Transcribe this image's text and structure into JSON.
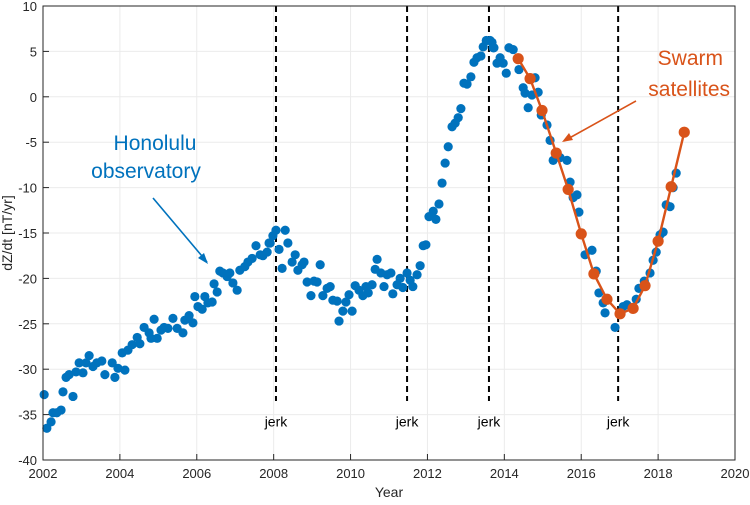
{
  "chart_data": {
    "type": "scatter",
    "title": "",
    "xlabel": "Year",
    "ylabel": "dZ/dt [nT/yr]",
    "xlim": [
      2002,
      2020
    ],
    "ylim": [
      -40,
      10
    ],
    "xticks": [
      2002,
      2004,
      2006,
      2008,
      2010,
      2012,
      2014,
      2016,
      2018,
      2020
    ],
    "yticks": [
      -40,
      -35,
      -30,
      -25,
      -20,
      -15,
      -10,
      -5,
      0,
      5,
      10
    ],
    "grid": true,
    "series": [
      {
        "name": "Honolulu observatory",
        "style": "markers",
        "color": "#0072BD",
        "points": [
          [
            2002.03,
            -32.8
          ],
          [
            2002.1,
            -36.5
          ],
          [
            2002.21,
            -35.8
          ],
          [
            2002.26,
            -34.8
          ],
          [
            2002.36,
            -34.8
          ],
          [
            2002.47,
            -34.5
          ],
          [
            2002.52,
            -32.5
          ],
          [
            2002.6,
            -30.9
          ],
          [
            2002.68,
            -30.6
          ],
          [
            2002.78,
            -33.0
          ],
          [
            2002.86,
            -30.3
          ],
          [
            2002.94,
            -29.3
          ],
          [
            2003.04,
            -30.4
          ],
          [
            2003.12,
            -29.3
          ],
          [
            2003.2,
            -28.5
          ],
          [
            2003.3,
            -29.7
          ],
          [
            2003.4,
            -29.3
          ],
          [
            2003.53,
            -29.1
          ],
          [
            2003.61,
            -30.6
          ],
          [
            2003.8,
            -29.3
          ],
          [
            2003.87,
            -30.9
          ],
          [
            2003.95,
            -29.9
          ],
          [
            2004.06,
            -28.2
          ],
          [
            2004.13,
            -30.1
          ],
          [
            2004.21,
            -27.9
          ],
          [
            2004.32,
            -27.3
          ],
          [
            2004.45,
            -26.5
          ],
          [
            2004.52,
            -27.2
          ],
          [
            2004.63,
            -25.4
          ],
          [
            2004.76,
            -26.0
          ],
          [
            2004.81,
            -26.6
          ],
          [
            2004.89,
            -24.5
          ],
          [
            2004.97,
            -26.6
          ],
          [
            2005.07,
            -25.7
          ],
          [
            2005.15,
            -25.4
          ],
          [
            2005.25,
            -25.5
          ],
          [
            2005.38,
            -24.4
          ],
          [
            2005.49,
            -25.5
          ],
          [
            2005.64,
            -26.0
          ],
          [
            2005.69,
            -24.6
          ],
          [
            2005.8,
            -24.1
          ],
          [
            2005.9,
            -24.9
          ],
          [
            2005.95,
            -22.0
          ],
          [
            2006.03,
            -23.1
          ],
          [
            2006.14,
            -23.4
          ],
          [
            2006.21,
            -22.0
          ],
          [
            2006.29,
            -22.7
          ],
          [
            2006.4,
            -22.6
          ],
          [
            2006.45,
            -20.6
          ],
          [
            2006.53,
            -21.5
          ],
          [
            2006.6,
            -19.2
          ],
          [
            2006.68,
            -19.4
          ],
          [
            2006.79,
            -19.8
          ],
          [
            2006.86,
            -19.4
          ],
          [
            2006.94,
            -20.5
          ],
          [
            2007.05,
            -21.3
          ],
          [
            2007.12,
            -19.1
          ],
          [
            2007.25,
            -18.7
          ],
          [
            2007.33,
            -18.2
          ],
          [
            2007.44,
            -17.8
          ],
          [
            2007.54,
            -16.4
          ],
          [
            2007.65,
            -17.4
          ],
          [
            2007.72,
            -17.5
          ],
          [
            2007.83,
            -17.1
          ],
          [
            2007.88,
            -16.1
          ],
          [
            2007.91,
            -16.1
          ],
          [
            2007.98,
            -15.3
          ],
          [
            2008.06,
            -14.7
          ],
          [
            2008.14,
            -16.8
          ],
          [
            2008.22,
            -18.9
          ],
          [
            2008.3,
            -14.7
          ],
          [
            2008.37,
            -16.1
          ],
          [
            2008.48,
            -18.2
          ],
          [
            2008.56,
            -17.4
          ],
          [
            2008.63,
            -19.1
          ],
          [
            2008.74,
            -18.5
          ],
          [
            2008.79,
            -18.2
          ],
          [
            2008.87,
            -20.4
          ],
          [
            2008.97,
            -21.9
          ],
          [
            2009.05,
            -20.3
          ],
          [
            2009.13,
            -20.4
          ],
          [
            2009.21,
            -18.5
          ],
          [
            2009.28,
            -21.9
          ],
          [
            2009.39,
            -21.1
          ],
          [
            2009.47,
            -20.9
          ],
          [
            2009.54,
            -22.4
          ],
          [
            2009.65,
            -22.5
          ],
          [
            2009.7,
            -24.7
          ],
          [
            2009.8,
            -23.6
          ],
          [
            2009.88,
            -22.6
          ],
          [
            2009.96,
            -21.8
          ],
          [
            2010.04,
            -23.6
          ],
          [
            2010.12,
            -20.8
          ],
          [
            2010.22,
            -21.3
          ],
          [
            2010.32,
            -21.9
          ],
          [
            2010.4,
            -20.9
          ],
          [
            2010.46,
            -21.6
          ],
          [
            2010.56,
            -20.7
          ],
          [
            2010.64,
            -19.0
          ],
          [
            2010.69,
            -17.9
          ],
          [
            2010.79,
            -19.4
          ],
          [
            2010.87,
            -20.9
          ],
          [
            2010.95,
            -19.6
          ],
          [
            2011.05,
            -19.4
          ],
          [
            2011.1,
            -21.7
          ],
          [
            2011.21,
            -20.7
          ],
          [
            2011.29,
            -20.0
          ],
          [
            2011.36,
            -21.0
          ],
          [
            2011.47,
            -19.4
          ],
          [
            2011.55,
            -20.2
          ],
          [
            2011.62,
            -20.9
          ],
          [
            2011.73,
            -19.6
          ],
          [
            2011.81,
            -18.6
          ],
          [
            2011.89,
            -16.4
          ],
          [
            2011.96,
            -16.3
          ],
          [
            2012.04,
            -13.2
          ],
          [
            2012.15,
            -12.6
          ],
          [
            2012.22,
            -13.5
          ],
          [
            2012.3,
            -11.8
          ],
          [
            2012.38,
            -9.5
          ],
          [
            2012.46,
            -7.3
          ],
          [
            2012.54,
            -5.5
          ],
          [
            2012.64,
            -3.3
          ],
          [
            2012.72,
            -2.9
          ],
          [
            2012.8,
            -2.3
          ],
          [
            2012.87,
            -1.3
          ],
          [
            2012.95,
            1.5
          ],
          [
            2013.03,
            1.4
          ],
          [
            2013.13,
            2.2
          ],
          [
            2013.21,
            3.8
          ],
          [
            2013.29,
            4.3
          ],
          [
            2013.39,
            4.5
          ],
          [
            2013.45,
            5.5
          ],
          [
            2013.53,
            6.2
          ],
          [
            2013.63,
            6.2
          ],
          [
            2013.68,
            6.0
          ],
          [
            2013.71,
            5.4
          ],
          [
            2013.73,
            5.4
          ],
          [
            2013.81,
            3.7
          ],
          [
            2013.89,
            4.3
          ],
          [
            2013.97,
            3.7
          ],
          [
            2014.05,
            2.6
          ],
          [
            2014.12,
            5.4
          ],
          [
            2014.23,
            5.2
          ],
          [
            2014.38,
            3.0
          ],
          [
            2014.49,
            1.0
          ],
          [
            2014.54,
            0.4
          ],
          [
            2014.62,
            -1.2
          ],
          [
            2014.72,
            0.2
          ],
          [
            2014.8,
            2.1
          ],
          [
            2014.88,
            0.5
          ],
          [
            2014.96,
            -2.0
          ],
          [
            2015.11,
            -3.1
          ],
          [
            2015.19,
            -4.8
          ],
          [
            2015.27,
            -7.0
          ],
          [
            2015.45,
            -6.7
          ],
          [
            2015.63,
            -7.0
          ],
          [
            2015.71,
            -9.4
          ],
          [
            2015.79,
            -11.1
          ],
          [
            2015.89,
            -10.8
          ],
          [
            2015.94,
            -12.7
          ],
          [
            2016.1,
            -17.4
          ],
          [
            2016.28,
            -16.9
          ],
          [
            2016.39,
            -19.2
          ],
          [
            2016.46,
            -21.6
          ],
          [
            2016.57,
            -22.7
          ],
          [
            2016.62,
            -23.8
          ],
          [
            2016.88,
            -25.4
          ],
          [
            2017.09,
            -23.1
          ],
          [
            2017.19,
            -22.9
          ],
          [
            2017.43,
            -22.3
          ],
          [
            2017.5,
            -21.1
          ],
          [
            2017.64,
            -20.3
          ],
          [
            2017.79,
            -19.4
          ],
          [
            2017.87,
            -18.0
          ],
          [
            2017.95,
            -17.1
          ],
          [
            2018.05,
            -15.2
          ],
          [
            2018.13,
            -14.9
          ],
          [
            2018.21,
            -11.9
          ],
          [
            2018.31,
            -12.1
          ],
          [
            2018.39,
            -10.0
          ],
          [
            2018.47,
            -8.4
          ]
        ]
      },
      {
        "name": "Swarm satellites",
        "style": "line-markers",
        "color": "#D95319",
        "points": [
          [
            2014.36,
            4.2
          ],
          [
            2014.67,
            2.0
          ],
          [
            2014.98,
            -1.5
          ],
          [
            2015.35,
            -6.2
          ],
          [
            2015.66,
            -10.2
          ],
          [
            2016.0,
            -15.1
          ],
          [
            2016.33,
            -19.5
          ],
          [
            2016.67,
            -22.3
          ],
          [
            2017.01,
            -23.9
          ],
          [
            2017.35,
            -23.3
          ],
          [
            2017.66,
            -20.8
          ],
          [
            2018.0,
            -15.9
          ],
          [
            2018.34,
            -9.9
          ],
          [
            2018.68,
            -3.9
          ]
        ]
      }
    ],
    "vlines": {
      "label": "jerk",
      "style": "dashed",
      "color": "#000000",
      "x": [
        2008.06,
        2011.47,
        2013.6,
        2016.96
      ]
    },
    "annotations": [
      {
        "name": "honolulu",
        "lines": [
          "Honolulu",
          "observatory"
        ],
        "color": "#0072BD"
      },
      {
        "name": "swarm",
        "lines": [
          "Swarm",
          "satellites"
        ],
        "color": "#D95319"
      }
    ]
  }
}
